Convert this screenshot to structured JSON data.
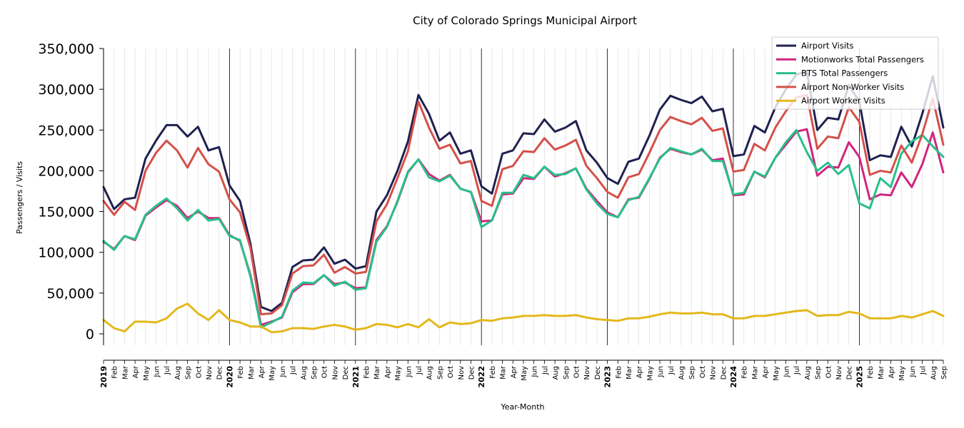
{
  "chart_data": {
    "type": "line",
    "title": "City of Colorado Springs Municipal Airport",
    "xlabel": "Year-Month",
    "ylabel": "Passengers / Visits",
    "ylim": [
      -14000,
      350000
    ],
    "yticks": [
      0,
      50000,
      100000,
      150000,
      200000,
      250000,
      300000,
      350000
    ],
    "ytick_labels": [
      "0",
      "50,000",
      "100,000",
      "150,000",
      "200,000",
      "250,000",
      "300,000",
      "350,000"
    ],
    "grid": "vertical minor gridlines at each month; year separator lines",
    "legend_position": "top-right",
    "month_labels": [
      "Jan",
      "Feb",
      "Mar",
      "Apr",
      "May",
      "Jun",
      "Jul",
      "Aug",
      "Sep",
      "Oct",
      "Nov",
      "Dec"
    ],
    "years": [
      "2019",
      "2020",
      "2021",
      "2022",
      "2023",
      "2024",
      "2025"
    ],
    "x_start": "2019-01",
    "x_end": "2025-09",
    "series": [
      {
        "name": "Airport Visits",
        "color": "#1f2150",
        "values": [
          180000,
          153000,
          165000,
          167000,
          215000,
          237000,
          256000,
          256000,
          242000,
          254000,
          225000,
          229000,
          182000,
          163000,
          110000,
          33000,
          28000,
          38000,
          82000,
          90000,
          91000,
          106000,
          86000,
          91000,
          80000,
          83000,
          150000,
          170000,
          200000,
          236000,
          293000,
          270000,
          237000,
          247000,
          221000,
          225000,
          181000,
          172000,
          221000,
          225000,
          246000,
          245000,
          263000,
          248000,
          253000,
          261000,
          225000,
          210000,
          191000,
          184000,
          211000,
          215000,
          243000,
          275000,
          292000,
          287000,
          283000,
          291000,
          273000,
          276000,
          218000,
          220000,
          255000,
          247000,
          278000,
          300000,
          318000,
          322000,
          250000,
          265000,
          263000,
          305000,
          285000,
          213000,
          219000,
          217000,
          254000,
          230000,
          270000,
          316000,
          253000
        ]
      },
      {
        "name": "Motionworks Total Passengers",
        "color": "#d2247f",
        "values": [
          113000,
          104000,
          120000,
          115000,
          145000,
          155000,
          164000,
          157000,
          142000,
          150000,
          142000,
          142000,
          121000,
          114000,
          72000,
          11000,
          15000,
          20000,
          51000,
          61000,
          61000,
          72000,
          61000,
          63000,
          56000,
          57000,
          115000,
          132000,
          162000,
          198000,
          214000,
          196000,
          188000,
          195000,
          178000,
          174000,
          138000,
          139000,
          171000,
          172000,
          191000,
          190000,
          205000,
          193000,
          197000,
          203000,
          178000,
          163000,
          149000,
          143000,
          165000,
          167000,
          190000,
          216000,
          227000,
          223000,
          220000,
          226000,
          213000,
          215000,
          170000,
          171000,
          199000,
          192000,
          216000,
          232000,
          248000,
          251000,
          194000,
          205000,
          204000,
          235000,
          217000,
          165000,
          171000,
          170000,
          198000,
          180000,
          208000,
          247000,
          198000
        ]
      },
      {
        "name": "BTS Total Passengers",
        "color": "#27c08a",
        "values": [
          114000,
          103000,
          120000,
          116000,
          146000,
          157000,
          166000,
          154000,
          139000,
          152000,
          139000,
          141000,
          120000,
          115000,
          70000,
          8000,
          14000,
          21000,
          53000,
          63000,
          62000,
          72000,
          59000,
          64000,
          54000,
          56000,
          113000,
          131000,
          163000,
          199000,
          214000,
          192000,
          187000,
          194000,
          178000,
          174000,
          131000,
          139000,
          173000,
          173000,
          195000,
          191000,
          205000,
          195000,
          196000,
          203000,
          177000,
          160000,
          147000,
          143000,
          164000,
          168000,
          191000,
          215000,
          228000,
          224000,
          220000,
          227000,
          212000,
          212000,
          171000,
          173000,
          199000,
          193000,
          216000,
          235000,
          250000,
          223000,
          200000,
          210000,
          196000,
          207000,
          160000,
          154000,
          191000,
          180000,
          221000,
          236000,
          244000,
          230000,
          217000
        ]
      },
      {
        "name": "Airport Non-Worker Visits",
        "color": "#d4504a",
        "values": [
          163000,
          146000,
          162000,
          152000,
          200000,
          222000,
          237000,
          225000,
          204000,
          228000,
          208000,
          199000,
          165000,
          149000,
          105000,
          24000,
          25000,
          35000,
          74000,
          83000,
          84000,
          97000,
          75000,
          82000,
          74000,
          76000,
          138000,
          159000,
          191000,
          224000,
          285000,
          253000,
          227000,
          232000,
          209000,
          212000,
          163000,
          157000,
          202000,
          206000,
          224000,
          223000,
          240000,
          226000,
          231000,
          238000,
          206000,
          191000,
          174000,
          167000,
          192000,
          196000,
          222000,
          250000,
          266000,
          261000,
          257000,
          265000,
          249000,
          252000,
          199000,
          201000,
          233000,
          225000,
          253000,
          273000,
          290000,
          293000,
          227000,
          242000,
          240000,
          278000,
          260000,
          195000,
          200000,
          198000,
          231000,
          210000,
          245000,
          289000,
          232000
        ]
      },
      {
        "name": "Airport Worker Visits",
        "color": "#e3b81c",
        "values": [
          17000,
          7000,
          3000,
          15000,
          15000,
          14000,
          19000,
          31000,
          37000,
          25000,
          17000,
          29000,
          17000,
          14000,
          9000,
          9000,
          2000,
          3000,
          7000,
          7000,
          6000,
          9000,
          11000,
          9000,
          5000,
          7000,
          12000,
          11000,
          8000,
          12000,
          8000,
          18000,
          8000,
          14000,
          12000,
          13000,
          17000,
          16000,
          19000,
          20000,
          22000,
          22000,
          23000,
          22000,
          22000,
          23000,
          20000,
          18000,
          17000,
          16000,
          19000,
          19000,
          21000,
          24000,
          26000,
          25000,
          25000,
          26000,
          24000,
          24000,
          19000,
          19000,
          22000,
          22000,
          24000,
          26000,
          28000,
          29000,
          22000,
          23000,
          23000,
          27000,
          25000,
          19000,
          19000,
          19000,
          22000,
          20000,
          24000,
          28000,
          22000
        ]
      }
    ]
  }
}
